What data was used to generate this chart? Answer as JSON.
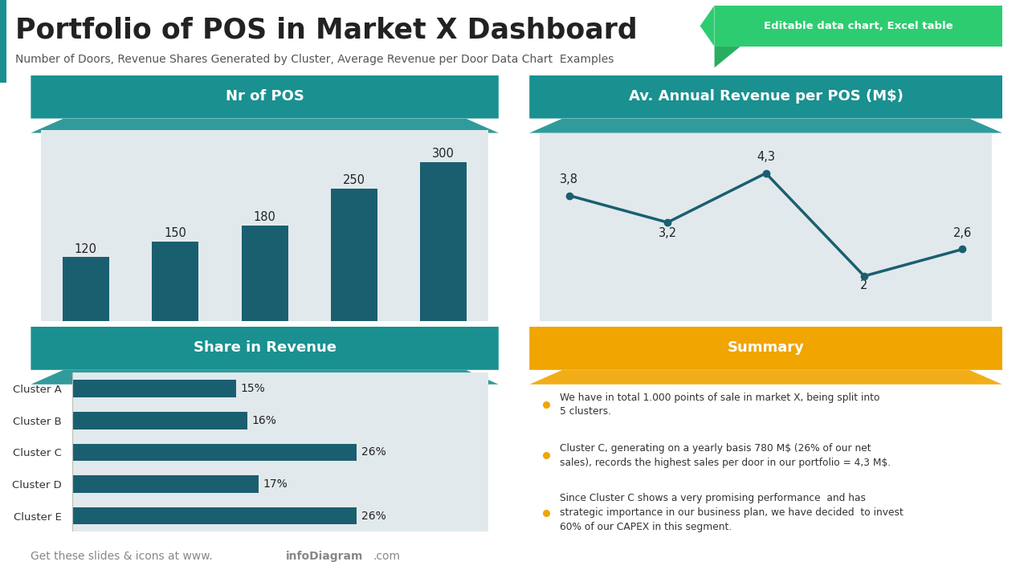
{
  "title": "Portfolio of POS in Market X Dashboard",
  "subtitle": "Number of Doors, Revenue Shares Generated by Cluster, Average Revenue per Door Data Chart  Examples",
  "badge_text": "Editable data chart, Excel table",
  "badge_color": "#2ecc71",
  "badge_dark": "#27ae60",
  "teal_color": "#1a9090",
  "bar_color": "#1a5f70",
  "gold_color": "#f0a500",
  "light_gray_bg": "#e2e9ec",
  "clusters": [
    "Cluster A",
    "Cluster B",
    "Cluster C",
    "Cluster D",
    "Cluster E"
  ],
  "pos_values": [
    120,
    150,
    180,
    250,
    300
  ],
  "revenue_values": [
    3.8,
    3.2,
    4.3,
    2.0,
    2.6
  ],
  "revenue_labels": [
    "3,8",
    "3,2",
    "4,3",
    "2",
    "2,6"
  ],
  "share_values_ordered": [
    26,
    17,
    26,
    16,
    15
  ],
  "share_labels_ordered": [
    "Cluster E",
    "Cluster D",
    "Cluster C",
    "Cluster B",
    "Cluster A"
  ],
  "nr_pos_title": "Nr of POS",
  "revenue_title": "Av. Annual Revenue per POS (M$)",
  "share_title": "Share in Revenue",
  "summary_title": "Summary",
  "summary_bullets": [
    "We have in total 1.000 points of sale in market X, being split into\n5 clusters.",
    "Cluster C, generating on a yearly basis 780 M$ (26% of our net\nsales), records the highest sales per door in our portfolio = 4,3 M$.",
    "Since Cluster C shows a very promising performance  and has\nstrategic importance in our business plan, we have decided  to invest\n60% of our CAPEX in this segment."
  ],
  "line_color": "#1a5f70",
  "footer_normal": "Get these slides & icons at www.",
  "footer_bold": "infoDiagram",
  "footer_end": ".com",
  "teal_strip_color": "#1a9090",
  "white": "#ffffff",
  "text_dark": "#222222",
  "text_gray": "#888888"
}
